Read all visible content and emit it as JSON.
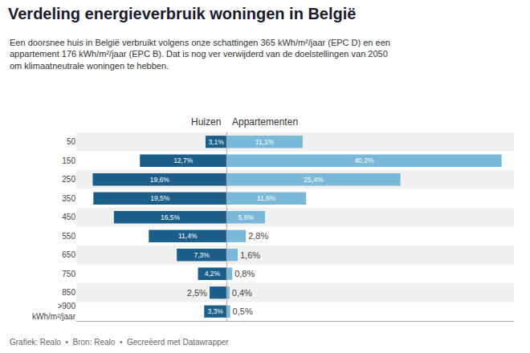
{
  "chart_data": {
    "type": "bar",
    "orientation": "horizontal",
    "title": "Verdeling energieverbruik woningen in België",
    "subtitle": "Een doorsnee huis in België verbruikt volgens onze schattingen 365 kWh/m²/jaar (EPC D) en een\nappartement 176 kWh/m²/jaar (EPC B). Dat is nog ver verwijderd van de doelstellingen van 2050\nom klimaatneutrale woningen te hebben.",
    "annotations": [
      "Grafiek: Realo  •  Bron: Realo  •  Gecreëerd met Datawrapper"
    ],
    "categories": [
      "50",
      "150",
      "250",
      "350",
      "450",
      "550",
      "650",
      "750",
      "850",
      ">900\nkWh/m²/jaar"
    ],
    "series": [
      {
        "name": "Huizen",
        "color": "#1b5e8a",
        "values": [
          3.1,
          12.7,
          19.6,
          19.5,
          16.5,
          11.4,
          7.3,
          4.2,
          2.5,
          3.3
        ],
        "value_labels": [
          "3,1%",
          "12,7%",
          "19,6%",
          "19,5%",
          "16,5%",
          "11,4%",
          "7,3%",
          "4,2%",
          "2,5%",
          "3,3%"
        ]
      },
      {
        "name": "Appartementen",
        "color": "#7ab8d9",
        "values": [
          11.1,
          40.2,
          25.4,
          11.6,
          5.6,
          2.8,
          1.6,
          0.8,
          0.4,
          0.5
        ],
        "value_labels": [
          "11,1%",
          "40,2%",
          "25,4%",
          "11,6%",
          "5,6%",
          "2,8%",
          "1,6%",
          "0,8%",
          "0,4%",
          "0,5%"
        ]
      }
    ],
    "xlim": [
      -22,
      42
    ],
    "xticks": [],
    "grid": false,
    "data_labels": true,
    "tick_labels": "y"
  }
}
